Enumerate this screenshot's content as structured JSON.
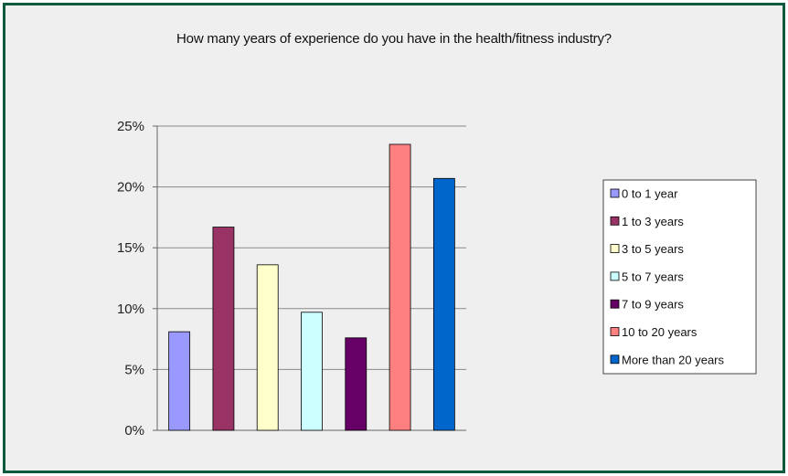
{
  "chart_data": {
    "type": "bar",
    "title": "How many years of experience do you have in the health/fitness industry?",
    "xlabel": "",
    "ylabel": "",
    "ylim": [
      0,
      0.25
    ],
    "y_ticks": [
      "0%",
      "5%",
      "10%",
      "15%",
      "20%",
      "25%"
    ],
    "grid": true,
    "legend_position": "right",
    "series": [
      {
        "name": "0 to 1 year",
        "value": 0.081,
        "color": "#9999ff"
      },
      {
        "name": "1 to 3 years",
        "value": 0.167,
        "color": "#993366"
      },
      {
        "name": "3 to 5 years",
        "value": 0.136,
        "color": "#ffffcc"
      },
      {
        "name": "5 to 7 years",
        "value": 0.097,
        "color": "#ccffff"
      },
      {
        "name": "7 to 9 years",
        "value": 0.076,
        "color": "#660066"
      },
      {
        "name": "10 to 20 years",
        "value": 0.235,
        "color": "#ff8080"
      },
      {
        "name": "More than 20 years",
        "value": 0.207,
        "color": "#0066cc"
      }
    ]
  }
}
